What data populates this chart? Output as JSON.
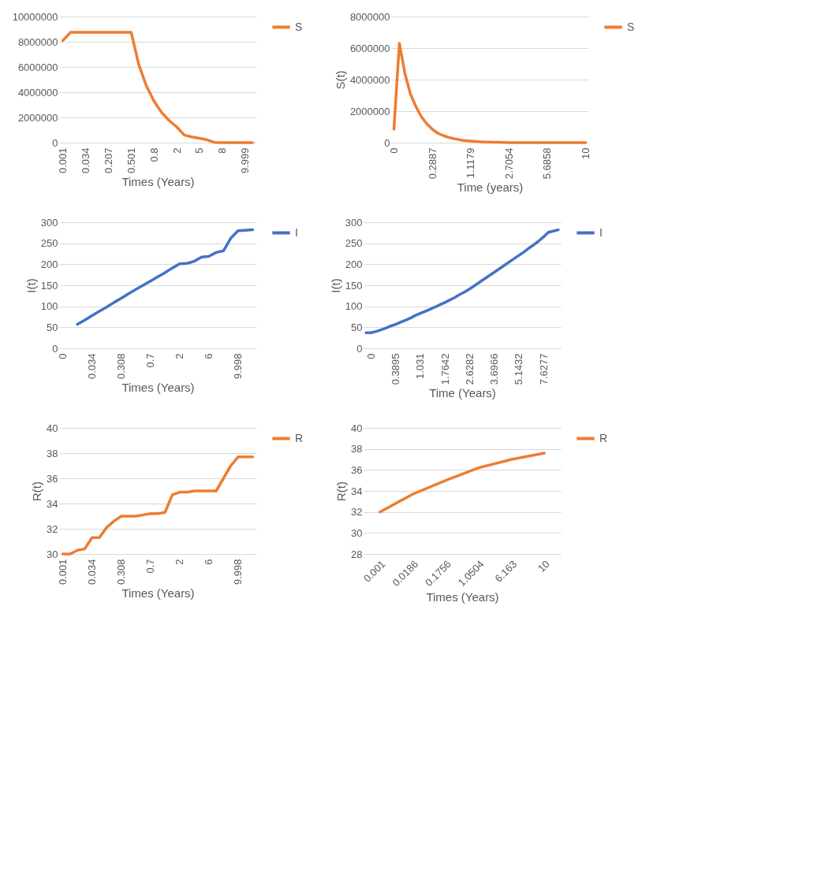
{
  "chart_data": [
    {
      "type": "line",
      "xlabel": "Times (Years)",
      "categories": [
        "0.001",
        null,
        null,
        "0.034",
        null,
        null,
        "0.207",
        null,
        null,
        "0.501",
        null,
        null,
        "0.8",
        null,
        null,
        "2",
        null,
        null,
        "5",
        null,
        null,
        "8",
        null,
        null,
        "9.999",
        null
      ],
      "series": [
        {
          "name": "S",
          "color": "#ed7d31",
          "values": [
            8100000,
            8750000,
            8750000,
            8750000,
            8750000,
            8750000,
            8750000,
            8750000,
            8750000,
            8750000,
            6200000,
            4500000,
            3300000,
            2400000,
            1750000,
            1250000,
            600000,
            450000,
            350000,
            220000,
            20000,
            0,
            0,
            0,
            0,
            0
          ]
        }
      ],
      "ylim": [
        0,
        10000000
      ],
      "yticks": [
        0,
        2000000,
        4000000,
        6000000,
        8000000,
        10000000
      ],
      "grid": "y",
      "legend": "right"
    },
    {
      "type": "line",
      "xlabel": "Time (years)",
      "ylabel": "S(t)",
      "categories": [
        "0",
        null,
        null,
        null,
        null,
        null,
        null,
        "0.2887",
        null,
        null,
        null,
        null,
        null,
        null,
        "1.1179",
        null,
        null,
        null,
        null,
        null,
        null,
        "2.7054",
        null,
        null,
        null,
        null,
        null,
        null,
        "5.6858",
        null,
        null,
        null,
        null,
        null,
        null,
        "10"
      ],
      "series": [
        {
          "name": "S",
          "color": "#ed7d31",
          "values": [
            850000,
            6300000,
            4400000,
            3100000,
            2300000,
            1650000,
            1200000,
            850000,
            600000,
            450000,
            330000,
            250000,
            180000,
            130000,
            100000,
            70000,
            50000,
            40000,
            30000,
            20000,
            10000,
            0,
            0,
            0,
            0,
            0,
            0,
            0,
            0,
            0,
            0,
            0,
            0,
            0,
            0,
            0
          ]
        }
      ],
      "ylim": [
        0,
        8000000
      ],
      "yticks": [
        0,
        2000000,
        4000000,
        6000000,
        8000000
      ],
      "grid": "y",
      "legend": "right"
    },
    {
      "type": "line",
      "xlabel": "Times (Years)",
      "ylabel": "I(t)",
      "categories": [
        "0",
        null,
        null,
        null,
        "0.034",
        null,
        null,
        null,
        "0.308",
        null,
        null,
        null,
        "0.7",
        null,
        null,
        null,
        "2",
        null,
        null,
        null,
        "6",
        null,
        null,
        null,
        "9.998",
        null,
        null
      ],
      "series": [
        {
          "name": "I",
          "color": "#4472c4",
          "values": [
            null,
            null,
            57,
            67,
            78,
            88,
            98,
            109,
            119,
            130,
            140,
            150,
            160,
            170,
            180,
            191,
            201,
            202,
            207,
            217,
            219,
            228,
            232,
            262,
            280,
            281,
            282
          ]
        }
      ],
      "ylim": [
        0,
        300
      ],
      "yticks": [
        0,
        50,
        100,
        150,
        200,
        250,
        300
      ],
      "grid": "y",
      "legend": "right"
    },
    {
      "type": "line",
      "xlabel": "Time (Years)",
      "ylabel": "I(t)",
      "categories": [
        null,
        "0",
        null,
        null,
        null,
        null,
        "0.3895",
        null,
        null,
        null,
        null,
        "1.031",
        null,
        null,
        null,
        null,
        "1.7642",
        null,
        null,
        null,
        null,
        "2.6282",
        null,
        null,
        null,
        null,
        "3.6966",
        null,
        null,
        null,
        null,
        "5.1432",
        null,
        null,
        null,
        null,
        "7.6277",
        null,
        null,
        null
      ],
      "series": [
        {
          "name": "I",
          "color": "#4472c4",
          "values": [
            37,
            37,
            40,
            44,
            48,
            53,
            57,
            62,
            67,
            72,
            78,
            83,
            88,
            93,
            98,
            104,
            109,
            115,
            121,
            128,
            134,
            141,
            149,
            157,
            165,
            173,
            181,
            189,
            197,
            205,
            213,
            221,
            229,
            238,
            246,
            255,
            265,
            276,
            279,
            282
          ]
        }
      ],
      "ylim": [
        0,
        300
      ],
      "yticks": [
        0,
        50,
        100,
        150,
        200,
        250,
        300
      ],
      "grid": "y",
      "legend": "right"
    },
    {
      "type": "line",
      "xlabel": "Times (Years)",
      "ylabel": "R(t)",
      "categories": [
        "0.001",
        null,
        null,
        null,
        "0.034",
        null,
        null,
        null,
        "0.308",
        null,
        null,
        null,
        "0.7",
        null,
        null,
        null,
        "2",
        null,
        null,
        null,
        "6",
        null,
        null,
        null,
        "9.998",
        null,
        null
      ],
      "series": [
        {
          "name": "R",
          "color": "#ed7d31",
          "values": [
            30.0,
            30.0,
            30.3,
            30.4,
            31.3,
            31.3,
            32.1,
            32.6,
            33.0,
            33.0,
            33.0,
            33.1,
            33.2,
            33.2,
            33.3,
            34.7,
            34.9,
            34.9,
            35.0,
            35.0,
            35.0,
            35.0,
            36.0,
            37.0,
            37.7,
            37.7,
            37.7
          ]
        }
      ],
      "ylim": [
        30,
        40
      ],
      "yticks": [
        30,
        32,
        34,
        36,
        38,
        40
      ],
      "grid": "y",
      "legend": "right"
    },
    {
      "type": "line",
      "xlabel": "Times (Years)",
      "ylabel": "R(t)",
      "categories": [
        "0.001",
        "0.0186",
        "0.1756",
        "1.0504",
        "6.163",
        "10"
      ],
      "series": [
        {
          "name": "R",
          "color": "#ed7d31",
          "values": [
            32.0,
            33.7,
            35.0,
            36.2,
            37.0,
            37.6
          ]
        }
      ],
      "ylim": [
        28,
        40
      ],
      "yticks": [
        28,
        30,
        32,
        34,
        36,
        38,
        40
      ],
      "grid": "y",
      "legend": "right"
    }
  ]
}
